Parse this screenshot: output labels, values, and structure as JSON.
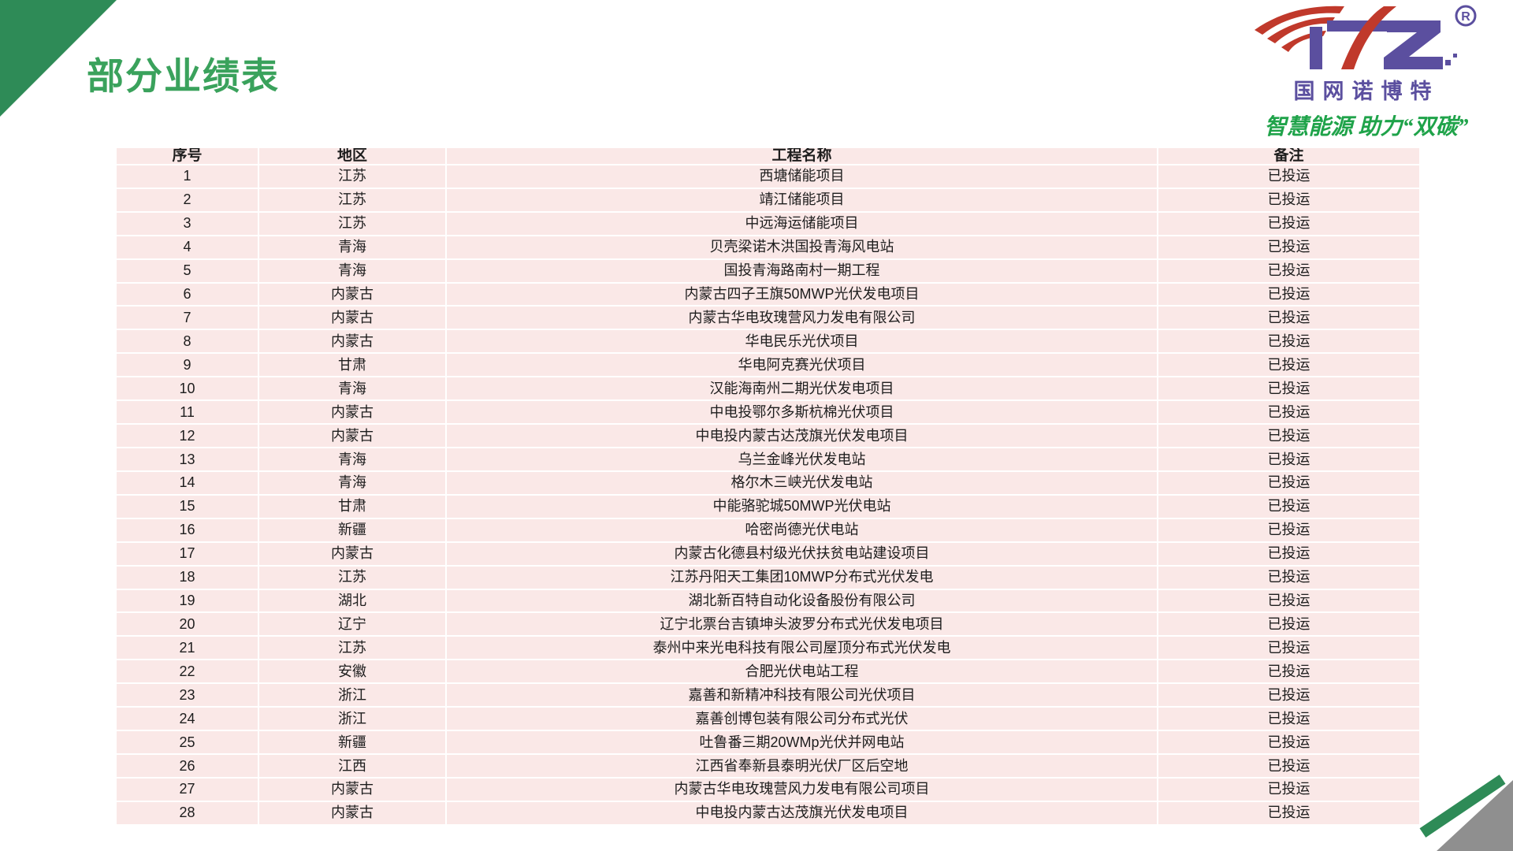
{
  "page": {
    "title": "部分业绩表"
  },
  "logo": {
    "mark": "NTZ",
    "registered": "®",
    "brand": "国网诺博特",
    "slogan": "智慧能源 助力“双碳”"
  },
  "colors": {
    "accent_green": "#2e8b57",
    "title_green": "#3aa25c",
    "slogan_green": "#1fa34a",
    "logo_purple": "#5b4f9f",
    "logo_red": "#c0392b",
    "cell_pink": "#fae8e7",
    "corner_gray": "#8f8f8f"
  },
  "table": {
    "headers": [
      "序号",
      "地区",
      "工程名称",
      "备注"
    ],
    "rows": [
      {
        "no": "1",
        "region": "江苏",
        "project": "西塘储能项目",
        "remark": "已投运"
      },
      {
        "no": "2",
        "region": "江苏",
        "project": "靖江储能项目",
        "remark": "已投运"
      },
      {
        "no": "3",
        "region": "江苏",
        "project": "中远海运储能项目",
        "remark": "已投运"
      },
      {
        "no": "4",
        "region": "青海",
        "project": "贝壳梁诺木洪国投青海风电站",
        "remark": "已投运"
      },
      {
        "no": "5",
        "region": "青海",
        "project": "国投青海路南村一期工程",
        "remark": "已投运"
      },
      {
        "no": "6",
        "region": "内蒙古",
        "project": "内蒙古四子王旗50MWP光伏发电项目",
        "remark": "已投运"
      },
      {
        "no": "7",
        "region": "内蒙古",
        "project": "内蒙古华电玫瑰营风力发电有限公司",
        "remark": "已投运"
      },
      {
        "no": "8",
        "region": "内蒙古",
        "project": "华电民乐光伏项目",
        "remark": "已投运"
      },
      {
        "no": "9",
        "region": "甘肃",
        "project": "华电阿克赛光伏项目",
        "remark": "已投运"
      },
      {
        "no": "10",
        "region": "青海",
        "project": "汉能海南州二期光伏发电项目",
        "remark": "已投运"
      },
      {
        "no": "11",
        "region": "内蒙古",
        "project": "中电投鄂尔多斯杭棉光伏项目",
        "remark": "已投运"
      },
      {
        "no": "12",
        "region": "内蒙古",
        "project": "中电投内蒙古达茂旗光伏发电项目",
        "remark": "已投运"
      },
      {
        "no": "13",
        "region": "青海",
        "project": "乌兰金峰光伏发电站",
        "remark": "已投运"
      },
      {
        "no": "14",
        "region": "青海",
        "project": "格尔木三峡光伏发电站",
        "remark": "已投运"
      },
      {
        "no": "15",
        "region": "甘肃",
        "project": "中能骆驼城50MWP光伏电站",
        "remark": "已投运"
      },
      {
        "no": "16",
        "region": "新疆",
        "project": "哈密尚德光伏电站",
        "remark": "已投运"
      },
      {
        "no": "17",
        "region": "内蒙古",
        "project": "内蒙古化德县村级光伏扶贫电站建设项目",
        "remark": "已投运"
      },
      {
        "no": "18",
        "region": "江苏",
        "project": "江苏丹阳天工集团10MWP分布式光伏发电",
        "remark": "已投运"
      },
      {
        "no": "19",
        "region": "湖北",
        "project": "湖北新百特自动化设备股份有限公司",
        "remark": "已投运"
      },
      {
        "no": "20",
        "region": "辽宁",
        "project": "辽宁北票台吉镇坤头波罗分布式光伏发电项目",
        "remark": "已投运"
      },
      {
        "no": "21",
        "region": "江苏",
        "project": "泰州中来光电科技有限公司屋顶分布式光伏发电",
        "remark": "已投运"
      },
      {
        "no": "22",
        "region": "安徽",
        "project": "合肥光伏电站工程",
        "remark": "已投运"
      },
      {
        "no": "23",
        "region": "浙江",
        "project": "嘉善和新精冲科技有限公司光伏项目",
        "remark": "已投运"
      },
      {
        "no": "24",
        "region": "浙江",
        "project": "嘉善创博包装有限公司分布式光伏",
        "remark": "已投运"
      },
      {
        "no": "25",
        "region": "新疆",
        "project": "吐鲁番三期20WMp光伏并网电站",
        "remark": "已投运"
      },
      {
        "no": "26",
        "region": "江西",
        "project": "江西省奉新县泰明光伏厂区后空地",
        "remark": "已投运"
      },
      {
        "no": "27",
        "region": "内蒙古",
        "project": "内蒙古华电玫瑰营风力发电有限公司项目",
        "remark": "已投运"
      },
      {
        "no": "28",
        "region": "内蒙古",
        "project": "中电投内蒙古达茂旗光伏发电项目",
        "remark": "已投运"
      }
    ]
  }
}
